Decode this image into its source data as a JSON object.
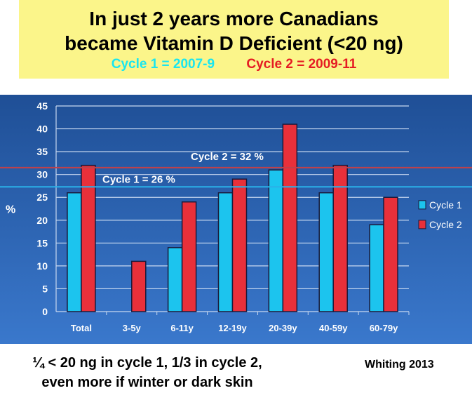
{
  "title": {
    "line1": "In just 2 years more Canadians",
    "line2": "became Vitamin D Deficient (<20 ng)",
    "cycle1_label": "Cycle 1 = 2007-9",
    "cycle2_label": "Cycle 2 = 2009-11"
  },
  "chart_data": {
    "type": "bar",
    "ylabel": "%",
    "ylim": [
      0,
      45
    ],
    "yticks": [
      0,
      5,
      10,
      15,
      20,
      25,
      30,
      35,
      40,
      45
    ],
    "grid": true,
    "legend_position": "right",
    "categories": [
      "Total",
      "3-5y",
      "6-11y",
      "12-19y",
      "20-39y",
      "40-59y",
      "60-79y"
    ],
    "series": [
      {
        "name": "Cycle 1",
        "color": "#1cc4ee",
        "values": [
          26,
          null,
          14,
          26,
          31,
          26,
          19
        ]
      },
      {
        "name": "Cycle 2",
        "color": "#e8303a",
        "values": [
          32,
          11,
          24,
          29,
          41,
          32,
          25
        ]
      }
    ],
    "reference_lines": [
      {
        "label": "Cycle 1 = 26 %",
        "value": 26,
        "color": "#2ab0e8"
      },
      {
        "label": "Cycle 2 = 32 %",
        "value": 32,
        "color": "#c0404a"
      }
    ],
    "background": "#2d5fb0"
  },
  "footer": {
    "line1": "¼ < 20 ng in cycle 1, 1/3 in cycle 2,",
    "line2": "even more if winter or dark skin",
    "source": "Whiting 2013"
  }
}
